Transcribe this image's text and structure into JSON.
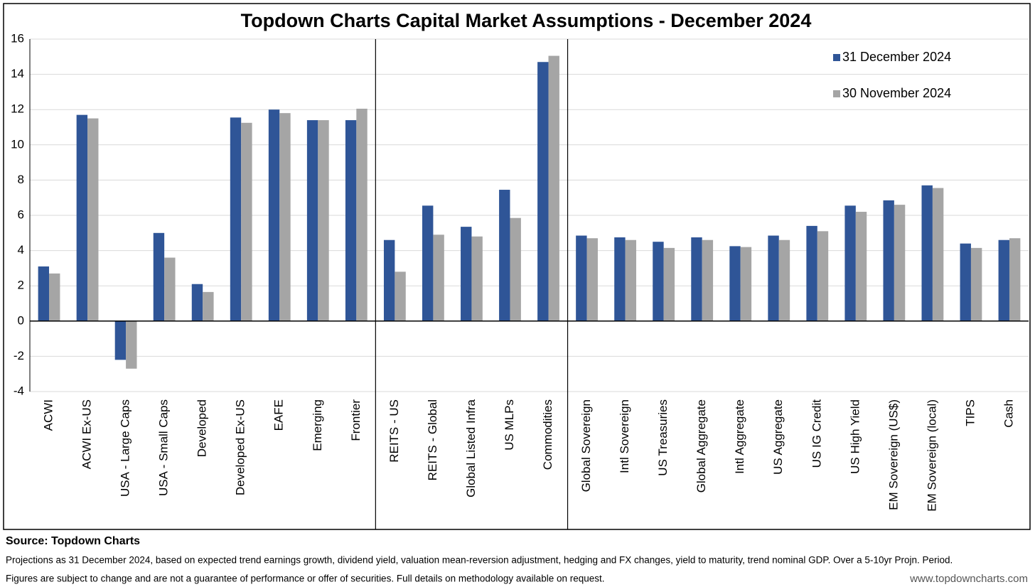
{
  "chart_data": {
    "type": "bar",
    "title": "Topdown Charts Capital Market Assumptions - December 2024",
    "categories": [
      "ACWI",
      "ACWI Ex-US",
      "USA - Large Caps",
      "USA - Small Caps",
      "Developed",
      "Developed Ex-US",
      "EAFE",
      "Emerging",
      "Frontier",
      "REITS - US",
      "REITS - Global",
      "Global Listed Infra",
      "US MLPs",
      "Commodities",
      "Global Sovereign",
      "Intl Sovereign",
      "US Treasuries",
      "Global Aggregate",
      "Intl Aggregate",
      "US Aggregate",
      "US IG Credit",
      "US High Yield",
      "EM Sovereign (US$)",
      "EM Sovereign (local)",
      "TIPS",
      "Cash"
    ],
    "series": [
      {
        "name": "31 December 2024",
        "color": "#2f5597",
        "values": [
          3.1,
          11.7,
          -2.2,
          5.0,
          2.1,
          11.55,
          12.0,
          11.4,
          11.4,
          4.6,
          6.55,
          5.35,
          7.45,
          14.7,
          4.85,
          4.75,
          4.5,
          4.75,
          4.25,
          4.85,
          5.4,
          6.55,
          6.85,
          7.7,
          4.4,
          4.6
        ]
      },
      {
        "name": "30 November 2024",
        "color": "#a5a5a5",
        "values": [
          2.7,
          11.5,
          -2.7,
          3.6,
          1.65,
          11.25,
          11.8,
          11.4,
          12.05,
          2.8,
          4.9,
          4.8,
          5.85,
          15.05,
          4.7,
          4.6,
          4.15,
          4.6,
          4.2,
          4.6,
          5.1,
          6.2,
          6.6,
          7.55,
          4.15,
          4.7
        ]
      }
    ],
    "ylim": [
      -4,
      16
    ],
    "yticks": [
      -4,
      -2,
      0,
      2,
      4,
      6,
      8,
      10,
      12,
      14,
      16
    ],
    "grid": true,
    "legend": "top-right"
  },
  "footer": {
    "source": "Source: Topdown Charts",
    "note1": "Projections as 31 December 2024, based on expected trend earnings growth, dividend yield, valuation mean-reversion adjustment, hedging and FX changes, yield to maturity, trend nominal GDP. Over a  5-10yr Projn. Period.",
    "note2": "Figures are subject to change and are not a guarantee of performance or offer of securities.  Full details on methodology available on request.",
    "website": "www.topdowncharts.com"
  }
}
